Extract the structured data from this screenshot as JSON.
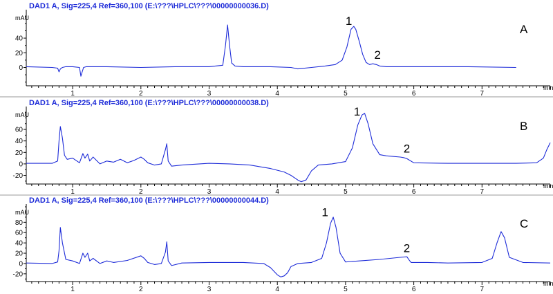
{
  "colors": {
    "trace": "#1d2bd8",
    "title": "#1d2bd8",
    "axis": "#000000",
    "separator": "#9a9a9a"
  },
  "chart_data": [
    {
      "type": "line",
      "panel_title": "DAD1 A, Sig=225,4 Ref=360,100 (E:\\???\\HPLC\\???\\00000000036.D)",
      "panel_letter": "A",
      "ylabel": "mAU",
      "xlabel": "min",
      "xlim": [
        0.32,
        8.0
      ],
      "ylim": [
        -25,
        75
      ],
      "x_ticks": [
        1,
        2,
        3,
        4,
        5,
        6,
        7
      ],
      "y_ticks": [
        0,
        20,
        40
      ],
      "series": [
        {
          "x": [
            0.32,
            0.7,
            0.78,
            0.8,
            0.82,
            0.85,
            0.9,
            1.0,
            1.1,
            1.12,
            1.14,
            1.16,
            1.2,
            1.5,
            2.0,
            2.5,
            3.0,
            3.2,
            3.24,
            3.27,
            3.3,
            3.33,
            3.38,
            3.5,
            3.9,
            4.2,
            4.3,
            4.4,
            4.5,
            4.7,
            4.85,
            4.95,
            5.02,
            5.08,
            5.12,
            5.15,
            5.2,
            5.25,
            5.3,
            5.35,
            5.4,
            5.45,
            5.5,
            5.6,
            5.8,
            6.2,
            6.8,
            7.5
          ],
          "y": [
            1,
            0,
            -1,
            -6,
            -2,
            0,
            1,
            1,
            0,
            -12,
            -6,
            0,
            1,
            1,
            0,
            1,
            1,
            3,
            30,
            58,
            30,
            6,
            2,
            1,
            1,
            0,
            -2,
            -1,
            0,
            2,
            4,
            10,
            28,
            52,
            56,
            52,
            36,
            18,
            7,
            4,
            5,
            4,
            2,
            1,
            1,
            1,
            1,
            0
          ]
        }
      ],
      "peak_labels": [
        {
          "text": "1",
          "x": 5.0,
          "y": 58
        },
        {
          "text": "2",
          "x": 5.42,
          "y": 12
        }
      ]
    },
    {
      "type": "line",
      "panel_title": "DAD1 A, Sig=225,4 Ref=360,100 (E:\\???\\HPLC\\???\\00000000038.D)",
      "panel_letter": "B",
      "ylabel": "mAU",
      "xlabel": "min",
      "xlim": [
        0.32,
        8.0
      ],
      "ylim": [
        -35,
        95
      ],
      "x_ticks": [
        1,
        2,
        3,
        4,
        5,
        6,
        7
      ],
      "y_ticks": [
        -20,
        0,
        20,
        40,
        60
      ],
      "series": [
        {
          "x": [
            0.32,
            0.7,
            0.78,
            0.8,
            0.82,
            0.85,
            0.88,
            0.92,
            1.0,
            1.1,
            1.15,
            1.18,
            1.22,
            1.25,
            1.3,
            1.4,
            1.5,
            1.6,
            1.7,
            1.8,
            1.9,
            2.0,
            2.05,
            2.1,
            2.2,
            2.3,
            2.36,
            2.38,
            2.4,
            2.45,
            2.6,
            3.0,
            3.3,
            3.6,
            3.9,
            4.1,
            4.2,
            4.3,
            4.35,
            4.42,
            4.5,
            4.6,
            4.8,
            5.0,
            5.1,
            5.18,
            5.24,
            5.28,
            5.33,
            5.4,
            5.5,
            5.6,
            5.8,
            5.85,
            5.9,
            6.0,
            6.5,
            7.0,
            7.5,
            7.8,
            7.9,
            7.95,
            8.0
          ],
          "y": [
            1,
            1,
            5,
            40,
            65,
            45,
            15,
            8,
            10,
            2,
            18,
            10,
            17,
            5,
            12,
            0,
            5,
            3,
            8,
            2,
            6,
            12,
            8,
            2,
            -2,
            0,
            25,
            35,
            5,
            -4,
            -2,
            1,
            0,
            -2,
            -8,
            -14,
            -20,
            -28,
            -31,
            -28,
            -12,
            -2,
            0,
            4,
            28,
            68,
            85,
            88,
            70,
            35,
            16,
            14,
            12,
            11,
            9,
            2,
            1,
            1,
            1,
            2,
            10,
            25,
            37
          ]
        }
      ],
      "peak_labels": [
        {
          "text": "1",
          "x": 5.12,
          "y": 84
        },
        {
          "text": "2",
          "x": 5.85,
          "y": 20
        }
      ]
    },
    {
      "type": "line",
      "panel_title": "DAD1 A, Sig=225,4 Ref=360,100 (E:\\???\\HPLC\\???\\00000000044.D)",
      "panel_letter": "C",
      "ylabel": "mAU",
      "xlabel": "min",
      "xlim": [
        0.32,
        8.0
      ],
      "ylim": [
        -35,
        110
      ],
      "x_ticks": [
        1,
        2,
        3,
        4,
        5,
        6,
        7
      ],
      "y_ticks": [
        -20,
        0,
        20,
        40,
        60,
        80
      ],
      "series": [
        {
          "x": [
            0.32,
            0.7,
            0.78,
            0.8,
            0.82,
            0.85,
            0.9,
            1.0,
            1.1,
            1.15,
            1.18,
            1.22,
            1.25,
            1.3,
            1.4,
            1.5,
            1.6,
            1.8,
            2.0,
            2.05,
            2.1,
            2.2,
            2.3,
            2.36,
            2.38,
            2.4,
            2.45,
            2.6,
            3.0,
            3.5,
            3.8,
            3.9,
            4.0,
            4.05,
            4.1,
            4.15,
            4.2,
            4.3,
            4.5,
            4.65,
            4.72,
            4.78,
            4.82,
            4.86,
            4.92,
            5.0,
            5.2,
            5.5,
            5.8,
            5.9,
            5.93,
            5.96,
            6.2,
            6.5,
            7.0,
            7.15,
            7.22,
            7.28,
            7.33,
            7.4,
            7.6,
            8.0
          ],
          "y": [
            1,
            0,
            3,
            25,
            70,
            40,
            8,
            5,
            0,
            20,
            12,
            20,
            5,
            10,
            0,
            5,
            2,
            6,
            15,
            10,
            2,
            -2,
            0,
            22,
            42,
            5,
            -4,
            1,
            2,
            2,
            0,
            -8,
            -22,
            -26,
            -24,
            -18,
            -6,
            0,
            2,
            10,
            40,
            78,
            90,
            70,
            20,
            3,
            5,
            8,
            12,
            13,
            7,
            2,
            2,
            1,
            2,
            10,
            40,
            62,
            50,
            12,
            2,
            1
          ]
        }
      ],
      "peak_labels": [
        {
          "text": "1",
          "x": 4.65,
          "y": 92
        },
        {
          "text": "2",
          "x": 5.85,
          "y": 22
        }
      ]
    }
  ]
}
